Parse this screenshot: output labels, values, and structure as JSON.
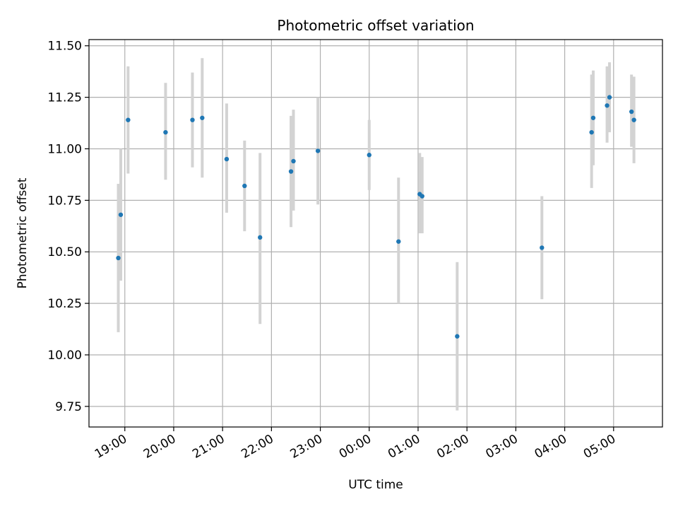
{
  "chart_data": {
    "type": "scatter",
    "title": "Photometric offset variation",
    "xlabel": "UTC time",
    "ylabel": "Photometric offset",
    "grid": true,
    "x_unit": "UTC time (hours past midnight of first night)",
    "xlim": [
      "18:16",
      "30:00"
    ],
    "ylim": [
      9.65,
      11.53
    ],
    "x_ticks": [
      "19:00",
      "20:00",
      "21:00",
      "22:00",
      "23:00",
      "00:00",
      "01:00",
      "02:00",
      "03:00",
      "04:00",
      "05:00"
    ],
    "y_ticks": [
      "9.75",
      "10.00",
      "10.25",
      "10.50",
      "10.75",
      "11.00",
      "11.25",
      "11.50"
    ],
    "colors": {
      "points": "#1f77b4",
      "errorbars": "#d3d3d3",
      "grid": "#b0b0b0"
    },
    "points": [
      {
        "time": "18:52",
        "y": 10.47,
        "lo": 10.11,
        "hi": 10.83
      },
      {
        "time": "18:55",
        "y": 10.68,
        "lo": 10.36,
        "hi": 11.0
      },
      {
        "time": "19:04",
        "y": 11.14,
        "lo": 10.88,
        "hi": 11.4
      },
      {
        "time": "19:50",
        "y": 11.08,
        "lo": 10.85,
        "hi": 11.32
      },
      {
        "time": "20:23",
        "y": 11.14,
        "lo": 10.91,
        "hi": 11.37
      },
      {
        "time": "20:35",
        "y": 11.15,
        "lo": 10.86,
        "hi": 11.44
      },
      {
        "time": "21:05",
        "y": 10.95,
        "lo": 10.69,
        "hi": 11.22
      },
      {
        "time": "21:27",
        "y": 10.82,
        "lo": 10.6,
        "hi": 11.04
      },
      {
        "time": "21:46",
        "y": 10.57,
        "lo": 10.15,
        "hi": 10.98
      },
      {
        "time": "22:24",
        "y": 10.89,
        "lo": 10.62,
        "hi": 11.16
      },
      {
        "time": "22:27",
        "y": 10.94,
        "lo": 10.7,
        "hi": 11.19
      },
      {
        "time": "22:57",
        "y": 10.99,
        "lo": 10.73,
        "hi": 11.25
      },
      {
        "time": "00:00",
        "y": 10.97,
        "lo": 10.8,
        "hi": 11.14
      },
      {
        "time": "00:36",
        "y": 10.55,
        "lo": 10.25,
        "hi": 10.86
      },
      {
        "time": "01:02",
        "y": 10.78,
        "lo": 10.59,
        "hi": 10.98
      },
      {
        "time": "01:05",
        "y": 10.77,
        "lo": 10.59,
        "hi": 10.96
      },
      {
        "time": "01:48",
        "y": 10.09,
        "lo": 9.73,
        "hi": 10.45
      },
      {
        "time": "03:32",
        "y": 10.52,
        "lo": 10.27,
        "hi": 10.77
      },
      {
        "time": "04:33",
        "y": 11.08,
        "lo": 10.81,
        "hi": 11.36
      },
      {
        "time": "04:35",
        "y": 11.15,
        "lo": 10.92,
        "hi": 11.38
      },
      {
        "time": "04:52",
        "y": 11.21,
        "lo": 11.03,
        "hi": 11.4
      },
      {
        "time": "04:55",
        "y": 11.25,
        "lo": 11.08,
        "hi": 11.42
      },
      {
        "time": "05:22",
        "y": 11.18,
        "lo": 11.01,
        "hi": 11.36
      },
      {
        "time": "05:25",
        "y": 11.14,
        "lo": 10.93,
        "hi": 11.35
      }
    ]
  }
}
